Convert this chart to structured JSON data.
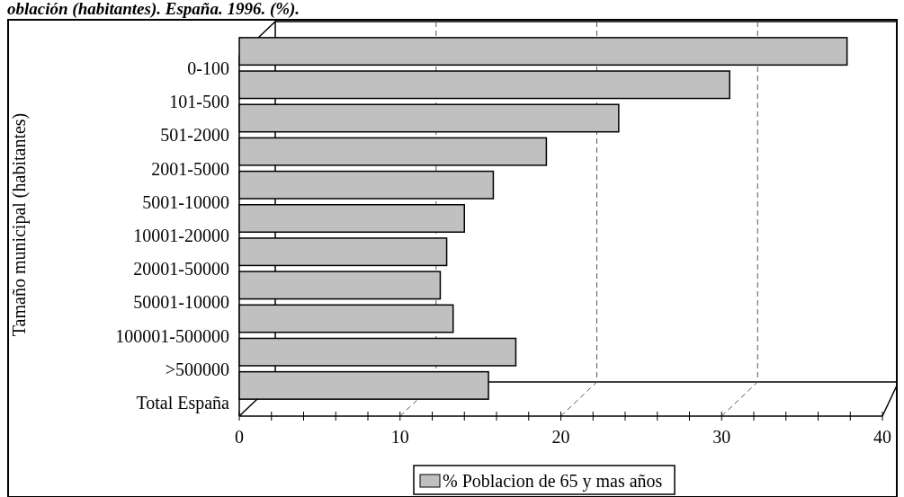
{
  "chart_data": {
    "type": "bar",
    "orientation": "horizontal",
    "title": "oblación (habitantes). España. 1996. (%).",
    "ylabel": "Tamaño municipal (habitantes)",
    "categories": [
      "0-100",
      "101-500",
      "501-2000",
      "2001-5000",
      "5001-10000",
      "10001-20000",
      "20001-50000",
      "50001-10000",
      "100001-500000",
      ">500000",
      "Total España"
    ],
    "series": [
      {
        "name": "% Poblacion de 65 y mas años",
        "color": "#c0c0c0",
        "values": [
          37.8,
          30.5,
          23.6,
          19.1,
          15.8,
          14.0,
          12.9,
          12.5,
          13.3,
          17.2,
          15.5
        ]
      }
    ],
    "xlim": [
      0,
      40
    ],
    "xticks": [
      0,
      {
        "value": 2,
        "label": null
      },
      {
        "value": 4,
        "label": null
      },
      {
        "value": 6,
        "label": null
      },
      {
        "value": 8,
        "label": null
      },
      10,
      {
        "value": 12,
        "label": null
      },
      {
        "value": 14,
        "label": null
      },
      {
        "value": 16,
        "label": null
      },
      {
        "value": 18,
        "label": null
      },
      20,
      {
        "value": 22,
        "label": null
      },
      {
        "value": 24,
        "label": null
      },
      {
        "value": 26,
        "label": null
      },
      {
        "value": 28,
        "label": null
      },
      30,
      {
        "value": 32,
        "label": null
      },
      {
        "value": 34,
        "label": null
      },
      {
        "value": 36,
        "label": null
      },
      {
        "value": 38,
        "label": null
      },
      40
    ],
    "grid": "x",
    "legend": "bottom"
  }
}
